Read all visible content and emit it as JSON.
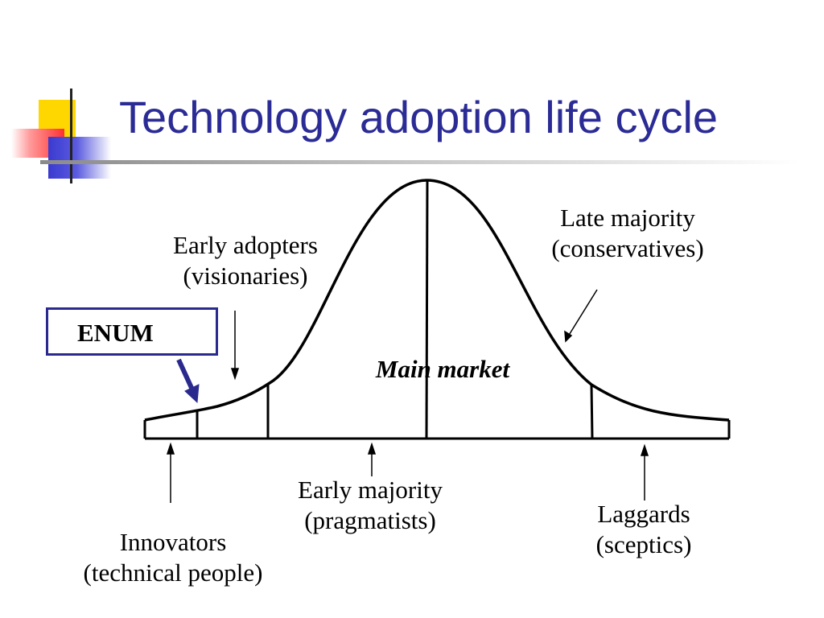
{
  "slide": {
    "title": "Technology adoption life cycle"
  },
  "colors": {
    "title": "#2b2b96",
    "accent_blue": "#2a2a8e",
    "deco_yellow": "#ffd700",
    "deco_red": "#ff4040",
    "deco_blue": "#3a3ad0",
    "rule_gray": "#bfbfbf"
  },
  "diagram": {
    "center_label": "Main market",
    "segments": [
      {
        "id": "innovators",
        "name": "Innovators",
        "description": "(technical people)"
      },
      {
        "id": "early-adopters",
        "name": "Early adopters",
        "description": "(visionaries)"
      },
      {
        "id": "early-majority",
        "name": "Early majority",
        "description": "(pragmatists)"
      },
      {
        "id": "late-majority",
        "name": "Late majority",
        "description": "(conservatives)"
      },
      {
        "id": "laggards",
        "name": "Laggards",
        "description": "(sceptics)"
      }
    ],
    "callout": {
      "label": "ENUM"
    }
  }
}
